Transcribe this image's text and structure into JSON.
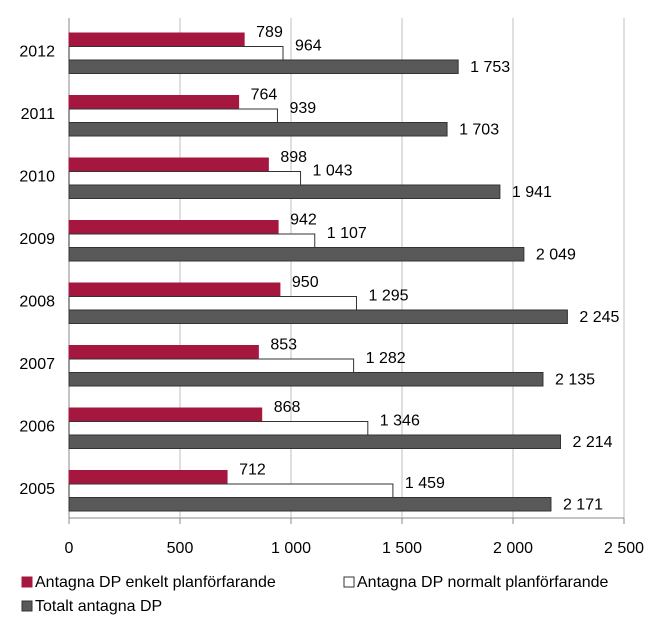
{
  "chart_data": {
    "type": "hbar",
    "categories": [
      "2012",
      "2011",
      "2010",
      "2009",
      "2008",
      "2007",
      "2006",
      "2005"
    ],
    "series": [
      {
        "name": "Antagna DP enkelt planförfarande",
        "color": "#a6173f",
        "values": [
          789,
          764,
          898,
          942,
          950,
          853,
          868,
          712
        ]
      },
      {
        "name": "Antagna DP normalt planförfarande",
        "color": "#ffffff",
        "values": [
          964,
          939,
          1043,
          1107,
          1295,
          1282,
          1346,
          1459
        ],
        "value_labels": [
          "964",
          "939",
          "1 043",
          "1 107",
          "1 295",
          "1 282",
          "1 346",
          "1 459"
        ]
      },
      {
        "name": "Totalt antagna DP",
        "color": "#595959",
        "values": [
          1753,
          1703,
          1941,
          2049,
          2245,
          2135,
          2214,
          2171
        ],
        "value_labels": [
          "1 753",
          "1 703",
          "1 941",
          "2 049",
          "2 245",
          "2 135",
          "2 214",
          "2 171"
        ]
      }
    ],
    "xlim": [
      0,
      2500
    ],
    "xticks": [
      0,
      500,
      {
        "value": 1000,
        "label": "1 000"
      },
      {
        "value": 1500,
        "label": "1 500"
      },
      {
        "value": 2000,
        "label": "2 000"
      },
      {
        "value": 2500,
        "label": "2 500"
      }
    ],
    "grid": true
  }
}
